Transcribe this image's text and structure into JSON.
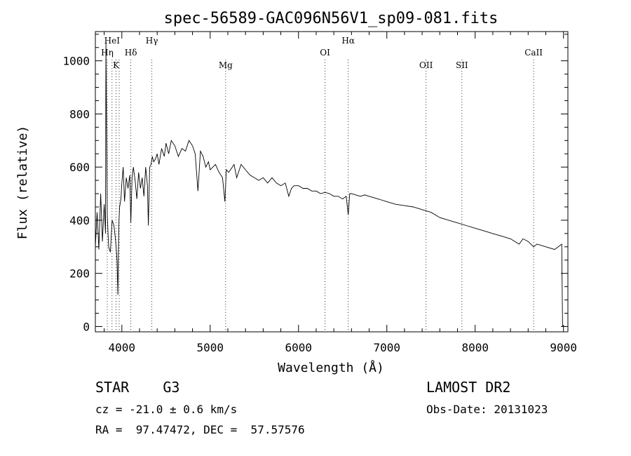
{
  "chart_data": {
    "type": "line",
    "title": "spec-56589-GAC096N56V1_sp09-081.fits",
    "xlabel": "Wavelength (Å)",
    "ylabel": "Flux (relative)",
    "xlim": [
      3700,
      9050
    ],
    "ylim": [
      -20,
      1110
    ],
    "xticks": [
      4000,
      5000,
      6000,
      7000,
      8000,
      9000
    ],
    "yticks": [
      0,
      200,
      400,
      600,
      800,
      1000
    ],
    "grid": false,
    "line_color": "#000000",
    "series": [
      {
        "x": [
          3700,
          3720,
          3740,
          3760,
          3780,
          3800,
          3815,
          3820,
          3835,
          3850,
          3870,
          3890,
          3910,
          3930,
          3945,
          3955,
          3965,
          3975,
          3990,
          4000,
          4015,
          4030,
          4050,
          4070,
          4090,
          4102,
          4115,
          4130,
          4150,
          4170,
          4190,
          4210,
          4230,
          4250,
          4270,
          4290,
          4300,
          4315,
          4330,
          4345,
          4360,
          4380,
          4400,
          4420,
          4450,
          4480,
          4500,
          4530,
          4560,
          4600,
          4640,
          4680,
          4720,
          4760,
          4800,
          4830,
          4861,
          4890,
          4920,
          4950,
          4980,
          5000,
          5030,
          5060,
          5100,
          5140,
          5167,
          5183,
          5210,
          5250,
          5270,
          5300,
          5350,
          5400,
          5450,
          5500,
          5550,
          5600,
          5650,
          5700,
          5750,
          5800,
          5850,
          5890,
          5920,
          5950,
          6000,
          6050,
          6100,
          6150,
          6200,
          6250,
          6300,
          6350,
          6400,
          6450,
          6500,
          6540,
          6563,
          6580,
          6600,
          6650,
          6700,
          6750,
          6800,
          6850,
          6900,
          6950,
          7000,
          7100,
          7200,
          7300,
          7400,
          7500,
          7600,
          7700,
          7800,
          7900,
          8000,
          8100,
          8200,
          8300,
          8400,
          8498,
          8542,
          8600,
          8662,
          8700,
          8800,
          8900,
          8980,
          8990
        ],
        "y": [
          300,
          430,
          290,
          500,
          320,
          460,
          350,
          1070,
          420,
          300,
          280,
          400,
          380,
          320,
          250,
          120,
          380,
          450,
          480,
          540,
          600,
          470,
          560,
          520,
          570,
          390,
          560,
          600,
          550,
          480,
          580,
          520,
          560,
          490,
          600,
          530,
          380,
          600,
          610,
          640,
          620,
          630,
          650,
          610,
          670,
          640,
          690,
          650,
          700,
          680,
          640,
          670,
          660,
          700,
          680,
          650,
          510,
          660,
          640,
          600,
          620,
          590,
          600,
          610,
          580,
          560,
          470,
          590,
          580,
          600,
          610,
          560,
          610,
          590,
          570,
          560,
          550,
          560,
          540,
          560,
          540,
          530,
          540,
          490,
          520,
          530,
          530,
          520,
          520,
          510,
          510,
          500,
          505,
          500,
          490,
          490,
          480,
          490,
          420,
          500,
          500,
          495,
          490,
          495,
          490,
          485,
          480,
          475,
          470,
          460,
          455,
          450,
          440,
          430,
          410,
          400,
          390,
          380,
          370,
          360,
          350,
          340,
          330,
          310,
          330,
          320,
          300,
          310,
          300,
          290,
          310,
          0
        ],
        "description_lines": [
          3835,
          3889,
          3934,
          3970,
          4102,
          4340,
          5175,
          6300,
          6563,
          7444,
          7850,
          8662
        ]
      }
    ],
    "annotations": [
      {
        "label": "HeI",
        "x": 3889,
        "row": 1
      },
      {
        "label": "Hη",
        "x": 3835,
        "row": 2
      },
      {
        "label": "K",
        "x": 3934,
        "row": 3
      },
      {
        "label": "Hδ",
        "x": 4102,
        "row": 2
      },
      {
        "label": "Hγ",
        "x": 4340,
        "row": 1
      },
      {
        "label": "Mg",
        "x": 5175,
        "row": 3
      },
      {
        "label": "OI",
        "x": 6300,
        "row": 2
      },
      {
        "label": "Hα",
        "x": 6563,
        "row": 1
      },
      {
        "label": "OII",
        "x": 7444,
        "row": 3
      },
      {
        "label": "SII",
        "x": 7850,
        "row": 3
      },
      {
        "label": "CaII",
        "x": 8662,
        "row": 2
      }
    ]
  },
  "info": {
    "object": "STAR    G3",
    "survey": "LAMOST DR2",
    "cz": "cz = -21.0 ± 0.6 km/s",
    "obs_date": "Obs-Date: 20131023",
    "coords": "RA =  97.47472, DEC =  57.57576"
  }
}
